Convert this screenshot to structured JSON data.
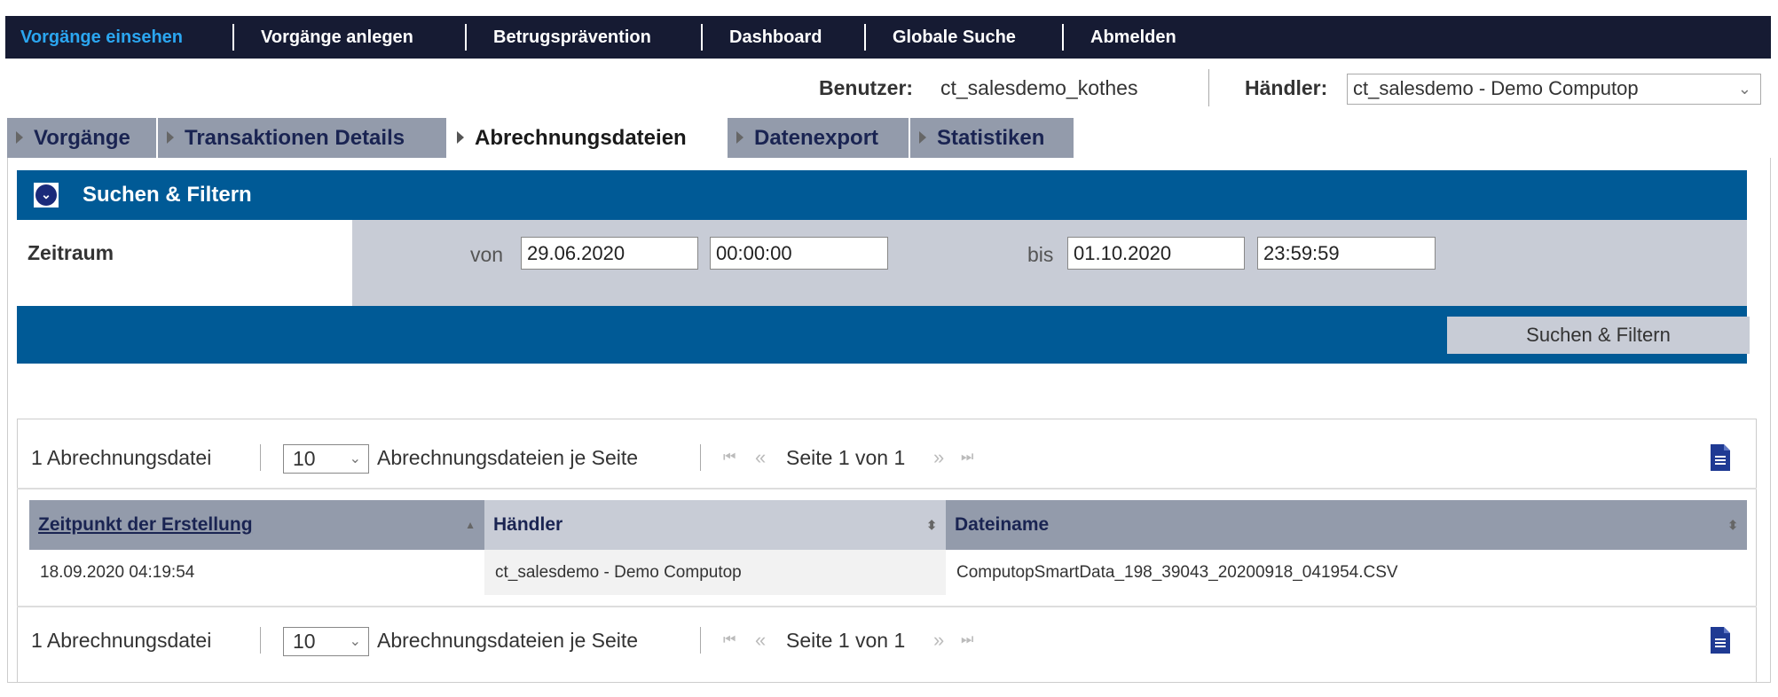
{
  "nav": {
    "items": [
      "Vorgänge einsehen",
      "Vorgänge anlegen",
      "Betrugsprävention",
      "Dashboard",
      "Globale Suche",
      "Abmelden"
    ],
    "active": 0
  },
  "user": {
    "label": "Benutzer:",
    "value": "ct_salesdemo_kothes"
  },
  "merchant": {
    "label": "Händler:",
    "value": "ct_salesdemo - Demo Computop"
  },
  "tabs": [
    "Vorgänge",
    "Transaktionen Details",
    "Abrechnungsdateien",
    "Datenexport",
    "Statistiken"
  ],
  "active_tab": 2,
  "filter": {
    "title": "Suchen & Filtern",
    "icon": "chevron-down-circle-icon",
    "zeitraum_label": "Zeitraum",
    "von_label": "von",
    "von_date": "29.06.2020",
    "von_time": "00:00:00",
    "bis_label": "bis",
    "bis_date": "01.10.2020",
    "bis_time": "23:59:59",
    "submit": "Suchen & Filtern"
  },
  "pager": {
    "count": "1 Abrechnungsdatei",
    "per_page": "10",
    "per_page_label": "Abrechnungsdateien je Seite",
    "page": "Seite 1 von 1",
    "first": "⏮",
    "prev": "«",
    "next": "»",
    "last": "⏭",
    "export_icon": "document-icon"
  },
  "table": {
    "columns": [
      "Zeitpunkt der Erstellung",
      "Händler",
      "Dateiname"
    ],
    "sort": [
      "ascending",
      "none",
      "none"
    ],
    "rows": [
      [
        "18.09.2020 04:19:54",
        "ct_salesdemo - Demo Computop",
        "ComputopSmartData_198_39043_20200918_041954.CSV"
      ]
    ]
  },
  "colors": {
    "nav_bg": "#161b33",
    "nav_active": "#2ba6f0",
    "blue": "#005a96",
    "tab_bg": "#939bab",
    "filter_bg": "#c8ccd6",
    "icon": "#1f3a93"
  }
}
